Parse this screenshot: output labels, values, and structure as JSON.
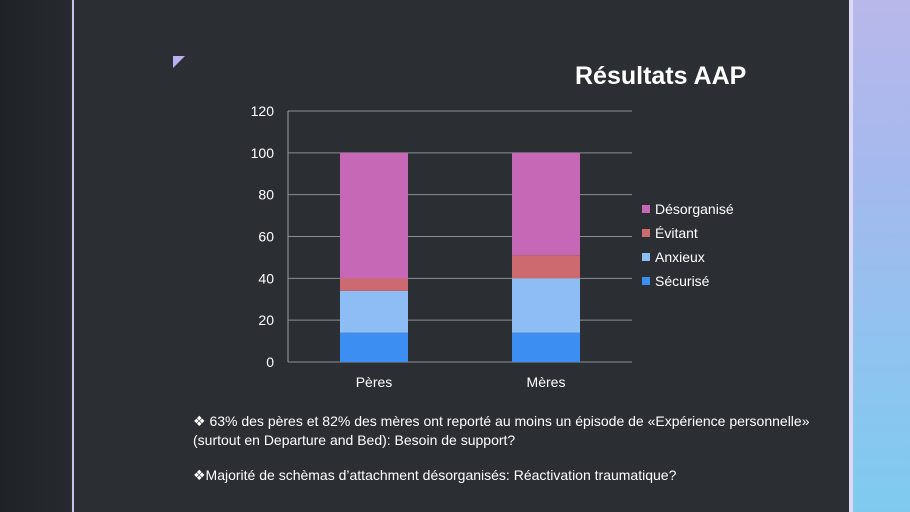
{
  "slide": {
    "title": "Résultats AAP",
    "bullets": [
      "❖ 63% des pères et 82%  des mères ont reporté au moins un épisode de «Expérience personnelle» (surtout en Departure and Bed): Besoin de support?",
      "❖Majorité de schèmas d’attachment désorganisés: Réactivation traumatique?"
    ]
  },
  "chart_data": {
    "type": "bar",
    "stacked": true,
    "categories": [
      "Pères",
      "Mères"
    ],
    "ylim": [
      0,
      120
    ],
    "yticks": [
      0,
      20,
      40,
      60,
      80,
      100,
      120
    ],
    "grid": true,
    "legend_position": "right",
    "series": [
      {
        "name": "Sécurisé",
        "color": "#3d8ef2",
        "values": [
          14,
          14
        ]
      },
      {
        "name": "Anxieux",
        "color": "#8dbdf4",
        "values": [
          20,
          26
        ]
      },
      {
        "name": "Évitant",
        "color": "#cc6a6f",
        "values": [
          6,
          11
        ]
      },
      {
        "name": "Désorganisé",
        "color": "#c668b5",
        "values": [
          60,
          49
        ]
      }
    ]
  }
}
